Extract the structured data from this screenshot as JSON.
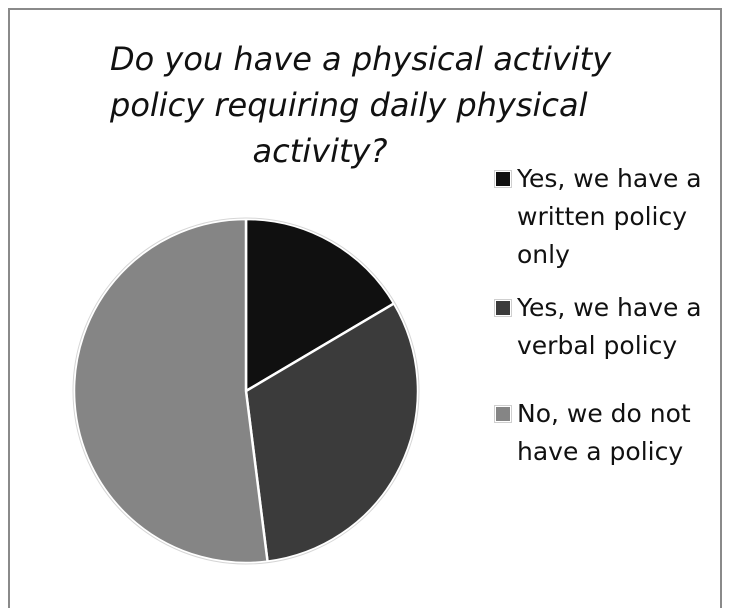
{
  "chart_data": {
    "type": "pie",
    "title_lines": [
      "Do you have a physical activity",
      "policy requiring daily physical",
      "activity?"
    ],
    "legend_placement": "right",
    "slices": [
      {
        "label": "Yes, we have a written policy only",
        "value": 16.5,
        "color": "#101010"
      },
      {
        "label": "Yes, we have a verbal policy",
        "value": 31.5,
        "color": "#3b3b3b"
      },
      {
        "label": "No, we do not have a policy",
        "value": 52.0,
        "color": "#858585"
      }
    ]
  }
}
